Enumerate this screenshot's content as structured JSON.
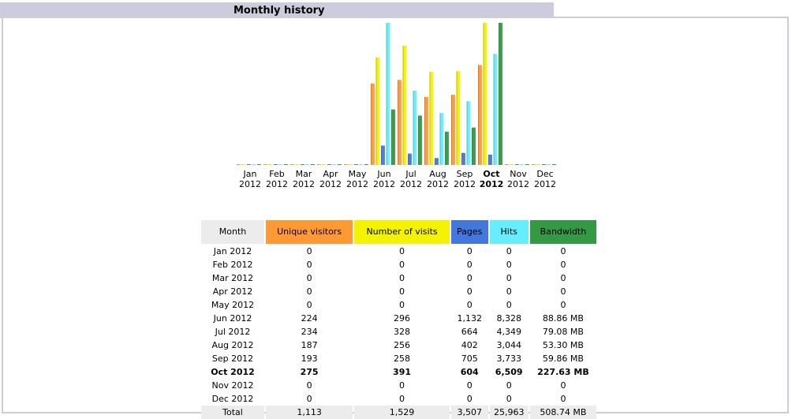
{
  "title": "Monthly history",
  "colors": {
    "unique_visitors": "#ff9933",
    "number_of_visits": "#f3f300",
    "pages": "#4477dd",
    "hits": "#66eeff",
    "bandwidth": "#339944",
    "month_header": "#ececec",
    "frame": "#ccccdd"
  },
  "table": {
    "headers": {
      "month": "Month",
      "unique_visitors": "Unique visitors",
      "number_of_visits": "Number of visits",
      "pages": "Pages",
      "hits": "Hits",
      "bandwidth": "Bandwidth"
    },
    "rows": [
      {
        "month": "Jan 2012",
        "unique": "0",
        "visits": "0",
        "pages": "0",
        "hits": "0",
        "bandwidth": "0"
      },
      {
        "month": "Feb 2012",
        "unique": "0",
        "visits": "0",
        "pages": "0",
        "hits": "0",
        "bandwidth": "0"
      },
      {
        "month": "Mar 2012",
        "unique": "0",
        "visits": "0",
        "pages": "0",
        "hits": "0",
        "bandwidth": "0"
      },
      {
        "month": "Apr 2012",
        "unique": "0",
        "visits": "0",
        "pages": "0",
        "hits": "0",
        "bandwidth": "0"
      },
      {
        "month": "May 2012",
        "unique": "0",
        "visits": "0",
        "pages": "0",
        "hits": "0",
        "bandwidth": "0"
      },
      {
        "month": "Jun 2012",
        "unique": "224",
        "visits": "296",
        "pages": "1,132",
        "hits": "8,328",
        "bandwidth": "88.86 MB"
      },
      {
        "month": "Jul 2012",
        "unique": "234",
        "visits": "328",
        "pages": "664",
        "hits": "4,349",
        "bandwidth": "79.08 MB"
      },
      {
        "month": "Aug 2012",
        "unique": "187",
        "visits": "256",
        "pages": "402",
        "hits": "3,044",
        "bandwidth": "53.30 MB"
      },
      {
        "month": "Sep 2012",
        "unique": "193",
        "visits": "258",
        "pages": "705",
        "hits": "3,733",
        "bandwidth": "59.86 MB"
      },
      {
        "month": "Oct 2012",
        "unique": "275",
        "visits": "391",
        "pages": "604",
        "hits": "6,509",
        "bandwidth": "227.63 MB",
        "bold": true
      },
      {
        "month": "Nov 2012",
        "unique": "0",
        "visits": "0",
        "pages": "0",
        "hits": "0",
        "bandwidth": "0"
      },
      {
        "month": "Dec 2012",
        "unique": "0",
        "visits": "0",
        "pages": "0",
        "hits": "0",
        "bandwidth": "0"
      }
    ],
    "total": {
      "month": "Total",
      "unique": "1,113",
      "visits": "1,529",
      "pages": "3,507",
      "hits": "25,963",
      "bandwidth": "508.74 MB"
    }
  },
  "chart_data": {
    "type": "bar",
    "categories": [
      "Jan 2012",
      "Feb 2012",
      "Mar 2012",
      "Apr 2012",
      "May 2012",
      "Jun 2012",
      "Jul 2012",
      "Aug 2012",
      "Sep 2012",
      "Oct 2012",
      "Nov 2012",
      "Dec 2012"
    ],
    "tick_labels": [
      {
        "month": "Jan",
        "year": "2012"
      },
      {
        "month": "Feb",
        "year": "2012"
      },
      {
        "month": "Mar",
        "year": "2012"
      },
      {
        "month": "Apr",
        "year": "2012"
      },
      {
        "month": "May",
        "year": "2012"
      },
      {
        "month": "Jun",
        "year": "2012"
      },
      {
        "month": "Jul",
        "year": "2012"
      },
      {
        "month": "Aug",
        "year": "2012"
      },
      {
        "month": "Sep",
        "year": "2012"
      },
      {
        "month": "Oct",
        "year": "2012",
        "bold": true
      },
      {
        "month": "Nov",
        "year": "2012"
      },
      {
        "month": "Dec",
        "year": "2012"
      }
    ],
    "series": [
      {
        "name": "Unique visitors",
        "color": "#ff9933",
        "values": [
          0,
          0,
          0,
          0,
          0,
          224,
          234,
          187,
          193,
          275,
          0,
          0
        ]
      },
      {
        "name": "Number of visits",
        "color": "#f3f300",
        "values": [
          0,
          0,
          0,
          0,
          0,
          296,
          328,
          256,
          258,
          391,
          0,
          0
        ]
      },
      {
        "name": "Pages",
        "color": "#4477dd",
        "values": [
          0,
          0,
          0,
          0,
          0,
          1132,
          664,
          402,
          705,
          604,
          0,
          0
        ]
      },
      {
        "name": "Hits",
        "color": "#66eeff",
        "values": [
          0,
          0,
          0,
          0,
          0,
          8328,
          4349,
          3044,
          3733,
          6509,
          0,
          0
        ]
      },
      {
        "name": "Bandwidth",
        "unit": "MB",
        "color": "#339944",
        "values": [
          0,
          0,
          0,
          0,
          0,
          88.86,
          79.08,
          53.3,
          59.86,
          227.63,
          0,
          0
        ]
      }
    ],
    "scale_groups": [
      [
        "Unique visitors",
        "Number of visits"
      ],
      [
        "Pages",
        "Hits"
      ],
      [
        "Bandwidth"
      ]
    ],
    "legend": "none",
    "grid": false
  }
}
